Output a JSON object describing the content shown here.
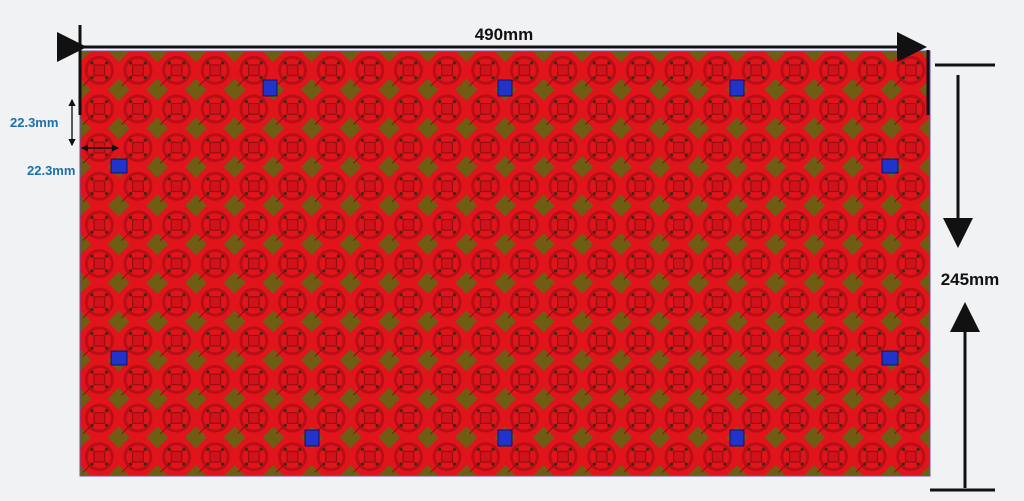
{
  "dimensions": {
    "width": "490mm",
    "height": "245mm",
    "pitch_vertical": "22.3mm",
    "pitch_horizontal": "22.3mm"
  }
}
